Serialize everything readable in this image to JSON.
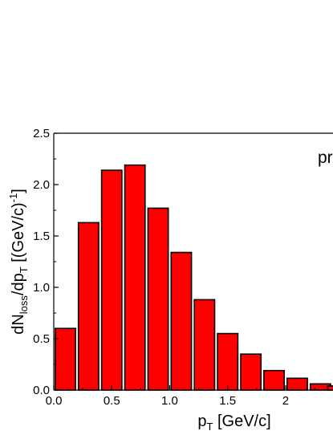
{
  "chart_data": {
    "type": "bar",
    "title": "",
    "annotation": "pr",
    "xlabel": {
      "base": "p",
      "sub": "T",
      "rest": " [GeV/c]"
    },
    "ylabel": {
      "p1": "dN",
      "sub1": "loss",
      "p2": "/dp",
      "sub2": "T",
      "p3": " [(GeV/c)",
      "sup": "-1",
      "p4": "]"
    },
    "xlim": [
      0.0,
      2.45
    ],
    "ylim": [
      0.0,
      2.5
    ],
    "x_ticks": [
      0.0,
      0.5,
      1.0,
      1.5,
      2.0
    ],
    "x_tick_labels": [
      "0.0",
      "0.5",
      "1.0",
      "1.5",
      "2"
    ],
    "y_ticks": [
      0.0,
      0.5,
      1.0,
      1.5,
      2.0,
      2.5
    ],
    "y_tick_labels": [
      "0.0",
      "0.5",
      "1.0",
      "1.5",
      "2.0",
      "2.5"
    ],
    "bar_centers": [
      0.1,
      0.3,
      0.5,
      0.7,
      0.9,
      1.1,
      1.3,
      1.5,
      1.7,
      1.9,
      2.1,
      2.3,
      2.45
    ],
    "values": [
      0.6,
      1.63,
      2.14,
      2.19,
      1.77,
      1.34,
      0.88,
      0.55,
      0.35,
      0.19,
      0.115,
      0.06,
      0.04
    ],
    "bar_color": "#ff0000",
    "edge_color": "#000000",
    "grid": false
  }
}
